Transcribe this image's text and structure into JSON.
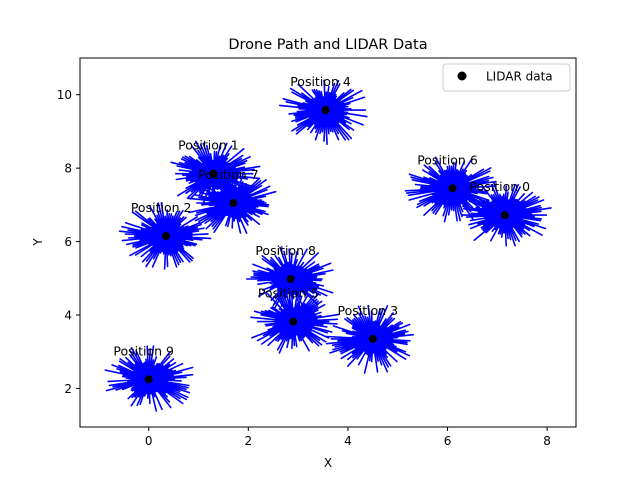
{
  "chart_data": {
    "type": "scatter",
    "title": "Drone Path and LIDAR Data",
    "xlabel": "X",
    "ylabel": "Y",
    "xlim": [
      -1.38,
      8.58
    ],
    "ylim": [
      0.95,
      11.0
    ],
    "x_ticks": [
      0,
      2,
      4,
      6,
      8
    ],
    "y_ticks": [
      2,
      4,
      6,
      8,
      10
    ],
    "legend": {
      "position": "upper right",
      "entries": [
        "LIDAR data"
      ]
    },
    "grid": false,
    "colors": {
      "marker": "#000000",
      "lidar_lines": "#0000ff"
    },
    "positions": [
      {
        "label": "Position 0",
        "x": 7.15,
        "y": 6.72
      },
      {
        "label": "Position 1",
        "x": 1.3,
        "y": 7.85
      },
      {
        "label": "Position 2",
        "x": 0.35,
        "y": 6.15
      },
      {
        "label": "Position 3",
        "x": 4.5,
        "y": 3.35
      },
      {
        "label": "Position 4",
        "x": 3.55,
        "y": 9.58
      },
      {
        "label": "Position 5",
        "x": 2.9,
        "y": 3.82
      },
      {
        "label": "Position 6",
        "x": 6.1,
        "y": 7.45
      },
      {
        "label": "Position 7",
        "x": 1.7,
        "y": 7.05
      },
      {
        "label": "Position 8",
        "x": 2.85,
        "y": 4.98
      },
      {
        "label": "Position 9",
        "x": 0.0,
        "y": 2.25
      }
    ]
  }
}
